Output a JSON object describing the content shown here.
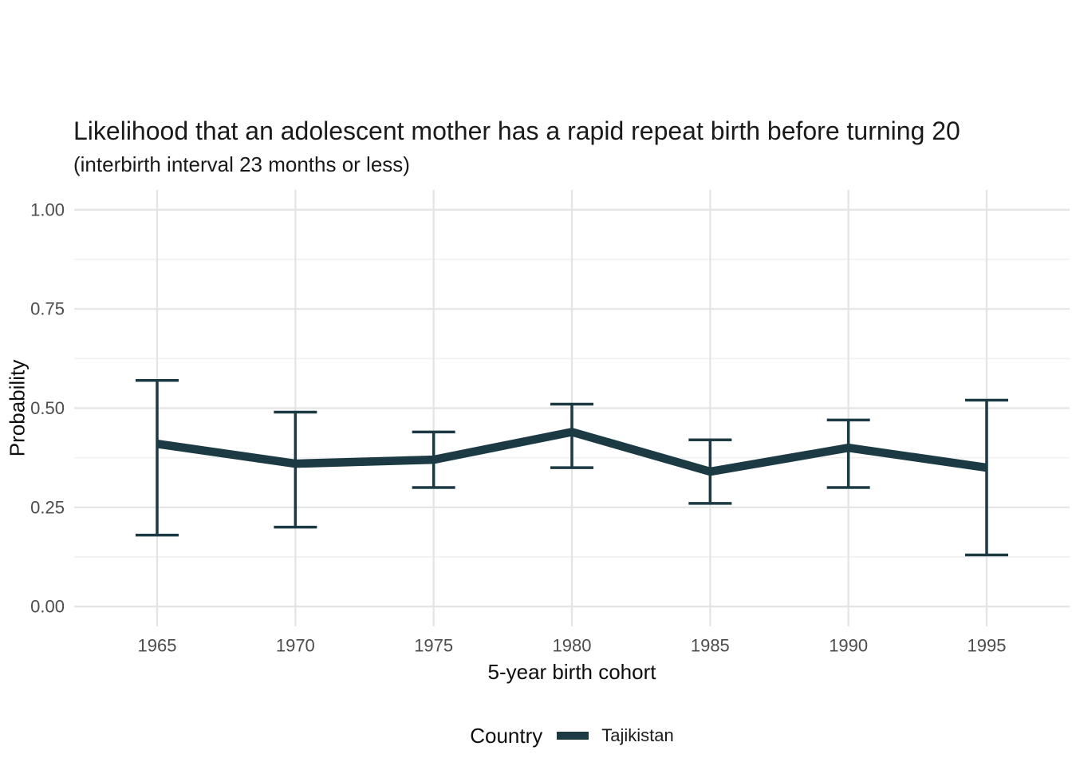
{
  "colors": {
    "line": "#1c3a44",
    "grid_major": "#e4e4e4",
    "grid_minor": "#f1f1f1",
    "tick_label": "#4d4d4d",
    "text": "#1a1a1a",
    "background": "#ffffff"
  },
  "legend": {
    "title": "Country",
    "items": [
      {
        "label": "Tajikistan",
        "color": "#1c3a44"
      }
    ]
  },
  "chart_data": {
    "type": "line",
    "title": "Likelihood that an adolescent mother has a rapid repeat birth before turning 20",
    "subtitle": "(interbirth interval 23 months or less)",
    "xlabel": "5-year birth cohort",
    "ylabel": "Probability",
    "categories": [
      "1965",
      "1970",
      "1975",
      "1980",
      "1985",
      "1990",
      "1995"
    ],
    "series": [
      {
        "name": "Tajikistan",
        "color": "#1c3a44",
        "values": [
          0.41,
          0.36,
          0.37,
          0.44,
          0.34,
          0.4,
          0.35
        ],
        "lower": [
          0.18,
          0.2,
          0.3,
          0.35,
          0.26,
          0.3,
          0.13
        ],
        "upper": [
          0.57,
          0.49,
          0.44,
          0.51,
          0.42,
          0.47,
          0.52
        ]
      }
    ],
    "error_bars": true,
    "ylim": [
      0,
      1
    ],
    "yticks": [
      0,
      0.25,
      0.5,
      0.75,
      1
    ],
    "ytick_labels": [
      "0.00",
      "0.25",
      "0.50",
      "0.75",
      "1.00"
    ],
    "yticks_minor": [
      0.125,
      0.375,
      0.625,
      0.875
    ],
    "grid": "horizontal major+minor, vertical major at each cohort",
    "legend_position": "bottom"
  }
}
